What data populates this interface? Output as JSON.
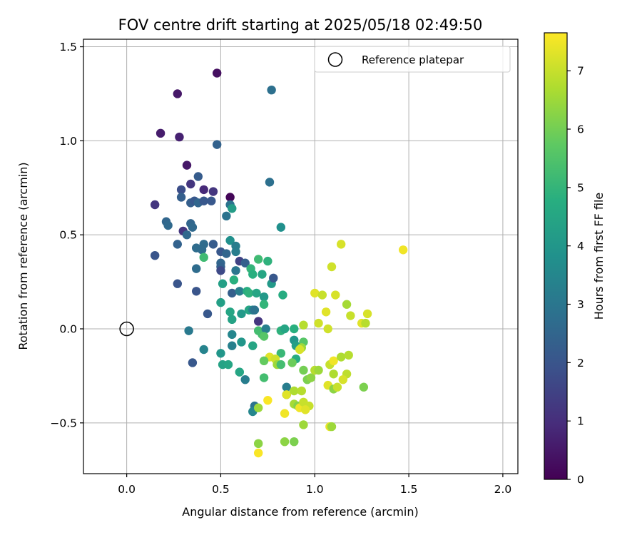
{
  "chart_data": {
    "type": "scatter",
    "title": "FOV centre drift starting at 2025/05/18 02:49:50",
    "xlabel": "Angular distance from reference (arcmin)",
    "ylabel": "Rotation from reference (arcmin)",
    "xlim": [
      -0.23,
      2.08
    ],
    "ylim": [
      -0.77,
      1.54
    ],
    "xticks": [
      0.0,
      0.5,
      1.0,
      1.5,
      2.0
    ],
    "xtick_labels": [
      "0.0",
      "0.5",
      "1.0",
      "1.5",
      "2.0"
    ],
    "yticks": [
      -0.5,
      0.0,
      0.5,
      1.0,
      1.5
    ],
    "ytick_labels": [
      "−0.5",
      "0.0",
      "0.5",
      "1.0",
      "1.5"
    ],
    "grid": true,
    "legend": {
      "label": "Reference platepar",
      "placement": "top-right",
      "marker": "open-circle"
    },
    "reference_point": {
      "x": 0.0,
      "y": 0.0
    },
    "colorbar": {
      "label": "Hours from first FF file",
      "colormap": "viridis",
      "min": 0,
      "max": 7.65,
      "ticks": [
        0,
        1,
        2,
        3,
        4,
        5,
        6,
        7
      ],
      "tick_labels": [
        "0",
        "1",
        "2",
        "3",
        "4",
        "5",
        "6",
        "7"
      ]
    },
    "points": [
      {
        "x": 0.48,
        "y": 1.36,
        "hours": 0.3
      },
      {
        "x": 0.27,
        "y": 1.25,
        "hours": 0.5
      },
      {
        "x": 0.77,
        "y": 1.27,
        "hours": 2.8
      },
      {
        "x": 0.18,
        "y": 1.04,
        "hours": 0.6
      },
      {
        "x": 0.28,
        "y": 1.02,
        "hours": 0.7
      },
      {
        "x": 0.48,
        "y": 0.98,
        "hours": 2.4
      },
      {
        "x": 0.32,
        "y": 0.87,
        "hours": 0.5
      },
      {
        "x": 0.38,
        "y": 0.81,
        "hours": 2.2
      },
      {
        "x": 0.76,
        "y": 0.78,
        "hours": 2.8
      },
      {
        "x": 0.29,
        "y": 0.74,
        "hours": 1.8
      },
      {
        "x": 0.34,
        "y": 0.77,
        "hours": 1.2
      },
      {
        "x": 0.41,
        "y": 0.74,
        "hours": 0.9
      },
      {
        "x": 0.46,
        "y": 0.73,
        "hours": 1.2
      },
      {
        "x": 0.55,
        "y": 0.7,
        "hours": 0.1
      },
      {
        "x": 0.29,
        "y": 0.7,
        "hours": 2.3
      },
      {
        "x": 0.34,
        "y": 0.67,
        "hours": 2.3
      },
      {
        "x": 0.36,
        "y": 0.68,
        "hours": 2.1
      },
      {
        "x": 0.38,
        "y": 0.67,
        "hours": 2.5
      },
      {
        "x": 0.41,
        "y": 0.68,
        "hours": 2.1
      },
      {
        "x": 0.45,
        "y": 0.68,
        "hours": 2.1
      },
      {
        "x": 0.55,
        "y": 0.66,
        "hours": 2.9
      },
      {
        "x": 0.56,
        "y": 0.64,
        "hours": 4.2
      },
      {
        "x": 0.53,
        "y": 0.6,
        "hours": 2.9
      },
      {
        "x": 0.15,
        "y": 0.66,
        "hours": 1.2
      },
      {
        "x": 0.21,
        "y": 0.57,
        "hours": 2.5
      },
      {
        "x": 0.22,
        "y": 0.55,
        "hours": 2.6
      },
      {
        "x": 0.34,
        "y": 0.56,
        "hours": 2.5
      },
      {
        "x": 0.35,
        "y": 0.54,
        "hours": 2.6
      },
      {
        "x": 0.3,
        "y": 0.52,
        "hours": 1.2
      },
      {
        "x": 0.32,
        "y": 0.5,
        "hours": 2.6
      },
      {
        "x": 0.82,
        "y": 0.54,
        "hours": 3.8
      },
      {
        "x": 0.27,
        "y": 0.45,
        "hours": 2.4
      },
      {
        "x": 0.41,
        "y": 0.45,
        "hours": 2.7
      },
      {
        "x": 0.46,
        "y": 0.45,
        "hours": 2.2
      },
      {
        "x": 0.37,
        "y": 0.43,
        "hours": 2.7
      },
      {
        "x": 0.4,
        "y": 0.42,
        "hours": 2.7
      },
      {
        "x": 0.5,
        "y": 0.41,
        "hours": 2.1
      },
      {
        "x": 0.53,
        "y": 0.4,
        "hours": 2.5
      },
      {
        "x": 0.55,
        "y": 0.47,
        "hours": 3.8
      },
      {
        "x": 0.58,
        "y": 0.44,
        "hours": 3.2
      },
      {
        "x": 0.58,
        "y": 0.41,
        "hours": 3.2
      },
      {
        "x": 0.41,
        "y": 0.38,
        "hours": 5.2
      },
      {
        "x": 0.15,
        "y": 0.39,
        "hours": 2.0
      },
      {
        "x": 0.5,
        "y": 0.35,
        "hours": 2.5
      },
      {
        "x": 0.5,
        "y": 0.33,
        "hours": 2.4
      },
      {
        "x": 0.5,
        "y": 0.31,
        "hours": 1.7
      },
      {
        "x": 0.37,
        "y": 0.32,
        "hours": 2.7
      },
      {
        "x": 0.58,
        "y": 0.31,
        "hours": 3.0
      },
      {
        "x": 0.6,
        "y": 0.36,
        "hours": 1.5
      },
      {
        "x": 0.63,
        "y": 0.35,
        "hours": 2.3
      },
      {
        "x": 0.66,
        "y": 0.32,
        "hours": 5.0
      },
      {
        "x": 0.67,
        "y": 0.29,
        "hours": 4.8
      },
      {
        "x": 0.7,
        "y": 0.37,
        "hours": 5.2
      },
      {
        "x": 0.75,
        "y": 0.36,
        "hours": 4.9
      },
      {
        "x": 0.72,
        "y": 0.29,
        "hours": 4.5
      },
      {
        "x": 0.57,
        "y": 0.26,
        "hours": 4.8
      },
      {
        "x": 0.51,
        "y": 0.24,
        "hours": 4.3
      },
      {
        "x": 0.77,
        "y": 0.24,
        "hours": 4.1
      },
      {
        "x": 0.78,
        "y": 0.27,
        "hours": 2.1
      },
      {
        "x": 0.27,
        "y": 0.24,
        "hours": 2.0
      },
      {
        "x": 0.37,
        "y": 0.2,
        "hours": 2.0
      },
      {
        "x": 0.56,
        "y": 0.19,
        "hours": 2.3
      },
      {
        "x": 0.6,
        "y": 0.2,
        "hours": 3.2
      },
      {
        "x": 0.64,
        "y": 0.2,
        "hours": 4.7
      },
      {
        "x": 0.65,
        "y": 0.19,
        "hours": 4.9
      },
      {
        "x": 0.69,
        "y": 0.19,
        "hours": 4.5
      },
      {
        "x": 0.73,
        "y": 0.17,
        "hours": 4.1
      },
      {
        "x": 0.83,
        "y": 0.18,
        "hours": 4.7
      },
      {
        "x": 0.73,
        "y": 0.13,
        "hours": 5.0
      },
      {
        "x": 0.5,
        "y": 0.14,
        "hours": 4.3
      },
      {
        "x": 0.55,
        "y": 0.09,
        "hours": 4.5
      },
      {
        "x": 0.61,
        "y": 0.08,
        "hours": 4.1
      },
      {
        "x": 0.65,
        "y": 0.1,
        "hours": 4.5
      },
      {
        "x": 0.67,
        "y": 0.1,
        "hours": 3.5
      },
      {
        "x": 0.68,
        "y": 0.1,
        "hours": 2.9
      },
      {
        "x": 0.43,
        "y": 0.08,
        "hours": 2.1
      },
      {
        "x": 0.7,
        "y": 0.04,
        "hours": 1.2
      },
      {
        "x": 0.56,
        "y": 0.05,
        "hours": 4.4
      },
      {
        "x": 0.33,
        "y": -0.01,
        "hours": 3.1
      },
      {
        "x": 0.56,
        "y": -0.03,
        "hours": 3.5
      },
      {
        "x": 0.7,
        "y": -0.01,
        "hours": 5.3
      },
      {
        "x": 0.72,
        "y": -0.03,
        "hours": 5.3
      },
      {
        "x": 0.74,
        "y": 0.0,
        "hours": 3.3
      },
      {
        "x": 0.73,
        "y": -0.04,
        "hours": 5.6
      },
      {
        "x": 0.82,
        "y": -0.01,
        "hours": 4.9
      },
      {
        "x": 0.84,
        "y": 0.0,
        "hours": 4.5
      },
      {
        "x": 0.89,
        "y": 0.0,
        "hours": 4.8
      },
      {
        "x": 0.94,
        "y": 0.02,
        "hours": 6.8
      },
      {
        "x": 0.61,
        "y": -0.07,
        "hours": 4.0
      },
      {
        "x": 0.67,
        "y": -0.09,
        "hours": 4.5
      },
      {
        "x": 0.56,
        "y": -0.09,
        "hours": 3.3
      },
      {
        "x": 0.89,
        "y": -0.06,
        "hours": 4.0
      },
      {
        "x": 0.94,
        "y": -0.07,
        "hours": 5.6
      },
      {
        "x": 0.9,
        "y": -0.09,
        "hours": 4.3
      },
      {
        "x": 0.93,
        "y": -0.1,
        "hours": 6.5
      },
      {
        "x": 0.92,
        "y": -0.11,
        "hours": 7.2
      },
      {
        "x": 0.41,
        "y": -0.11,
        "hours": 3.4
      },
      {
        "x": 0.5,
        "y": -0.13,
        "hours": 4.0
      },
      {
        "x": 0.82,
        "y": -0.13,
        "hours": 5.1
      },
      {
        "x": 0.76,
        "y": -0.15,
        "hours": 7.3
      },
      {
        "x": 0.79,
        "y": -0.16,
        "hours": 7.1
      },
      {
        "x": 0.9,
        "y": -0.16,
        "hours": 4.7
      },
      {
        "x": 0.35,
        "y": -0.18,
        "hours": 2.1
      },
      {
        "x": 0.51,
        "y": -0.19,
        "hours": 4.4
      },
      {
        "x": 0.54,
        "y": -0.19,
        "hours": 4.5
      },
      {
        "x": 0.73,
        "y": -0.17,
        "hours": 5.8
      },
      {
        "x": 0.8,
        "y": -0.19,
        "hours": 6.5
      },
      {
        "x": 0.82,
        "y": -0.19,
        "hours": 5.3
      },
      {
        "x": 0.88,
        "y": -0.18,
        "hours": 5.9
      },
      {
        "x": 0.6,
        "y": -0.23,
        "hours": 4.5
      },
      {
        "x": 0.63,
        "y": -0.27,
        "hours": 3.2
      },
      {
        "x": 0.73,
        "y": -0.26,
        "hours": 5.3
      },
      {
        "x": 0.94,
        "y": -0.22,
        "hours": 6.0
      },
      {
        "x": 0.96,
        "y": -0.27,
        "hours": 6.1
      },
      {
        "x": 0.98,
        "y": -0.26,
        "hours": 6.3
      },
      {
        "x": 1.0,
        "y": -0.22,
        "hours": 6.8
      },
      {
        "x": 1.02,
        "y": -0.22,
        "hours": 6.5
      },
      {
        "x": 1.08,
        "y": -0.19,
        "hours": 7.0
      },
      {
        "x": 1.1,
        "y": -0.17,
        "hours": 7.5
      },
      {
        "x": 1.1,
        "y": -0.24,
        "hours": 6.7
      },
      {
        "x": 1.14,
        "y": -0.15,
        "hours": 6.7
      },
      {
        "x": 1.18,
        "y": -0.14,
        "hours": 6.8
      },
      {
        "x": 1.17,
        "y": -0.24,
        "hours": 6.9
      },
      {
        "x": 1.15,
        "y": -0.27,
        "hours": 7.2
      },
      {
        "x": 1.07,
        "y": -0.3,
        "hours": 7.3
      },
      {
        "x": 1.1,
        "y": -0.32,
        "hours": 6.3
      },
      {
        "x": 1.12,
        "y": -0.31,
        "hours": 7.0
      },
      {
        "x": 1.26,
        "y": -0.31,
        "hours": 6.1
      },
      {
        "x": 0.85,
        "y": -0.31,
        "hours": 3.2
      },
      {
        "x": 0.85,
        "y": -0.35,
        "hours": 3.0
      },
      {
        "x": 0.85,
        "y": -0.35,
        "hours": 7.3
      },
      {
        "x": 0.89,
        "y": -0.33,
        "hours": 6.7
      },
      {
        "x": 0.93,
        "y": -0.33,
        "hours": 6.8
      },
      {
        "x": 0.75,
        "y": -0.38,
        "hours": 7.6
      },
      {
        "x": 0.89,
        "y": -0.4,
        "hours": 6.6
      },
      {
        "x": 0.91,
        "y": -0.41,
        "hours": 6.2
      },
      {
        "x": 0.92,
        "y": -0.42,
        "hours": 7.5
      },
      {
        "x": 0.94,
        "y": -0.39,
        "hours": 7.0
      },
      {
        "x": 0.97,
        "y": -0.41,
        "hours": 7.0
      },
      {
        "x": 0.95,
        "y": -0.43,
        "hours": 7.3
      },
      {
        "x": 0.68,
        "y": -0.41,
        "hours": 2.9
      },
      {
        "x": 0.67,
        "y": -0.44,
        "hours": 3.5
      },
      {
        "x": 0.7,
        "y": -0.42,
        "hours": 6.5
      },
      {
        "x": 0.84,
        "y": -0.45,
        "hours": 7.5
      },
      {
        "x": 0.94,
        "y": -0.51,
        "hours": 6.5
      },
      {
        "x": 1.08,
        "y": -0.52,
        "hours": 7.4
      },
      {
        "x": 1.09,
        "y": -0.52,
        "hours": 6.5
      },
      {
        "x": 0.84,
        "y": -0.6,
        "hours": 6.3
      },
      {
        "x": 0.89,
        "y": -0.6,
        "hours": 6.1
      },
      {
        "x": 0.7,
        "y": -0.61,
        "hours": 6.3
      },
      {
        "x": 0.7,
        "y": -0.66,
        "hours": 7.6
      },
      {
        "x": 1.0,
        "y": 0.19,
        "hours": 7.3
      },
      {
        "x": 1.04,
        "y": 0.18,
        "hours": 7.0
      },
      {
        "x": 1.09,
        "y": 0.33,
        "hours": 7.1
      },
      {
        "x": 1.14,
        "y": 0.45,
        "hours": 7.2
      },
      {
        "x": 1.11,
        "y": 0.18,
        "hours": 7.2
      },
      {
        "x": 1.06,
        "y": 0.09,
        "hours": 7.3
      },
      {
        "x": 1.02,
        "y": 0.03,
        "hours": 7.1
      },
      {
        "x": 1.07,
        "y": 0.0,
        "hours": 7.1
      },
      {
        "x": 1.17,
        "y": 0.13,
        "hours": 6.6
      },
      {
        "x": 1.19,
        "y": 0.07,
        "hours": 7.0
      },
      {
        "x": 1.25,
        "y": 0.03,
        "hours": 7.3
      },
      {
        "x": 1.27,
        "y": 0.03,
        "hours": 6.8
      },
      {
        "x": 1.28,
        "y": 0.08,
        "hours": 7.2
      },
      {
        "x": 1.47,
        "y": 0.42,
        "hours": 7.5
      }
    ]
  }
}
